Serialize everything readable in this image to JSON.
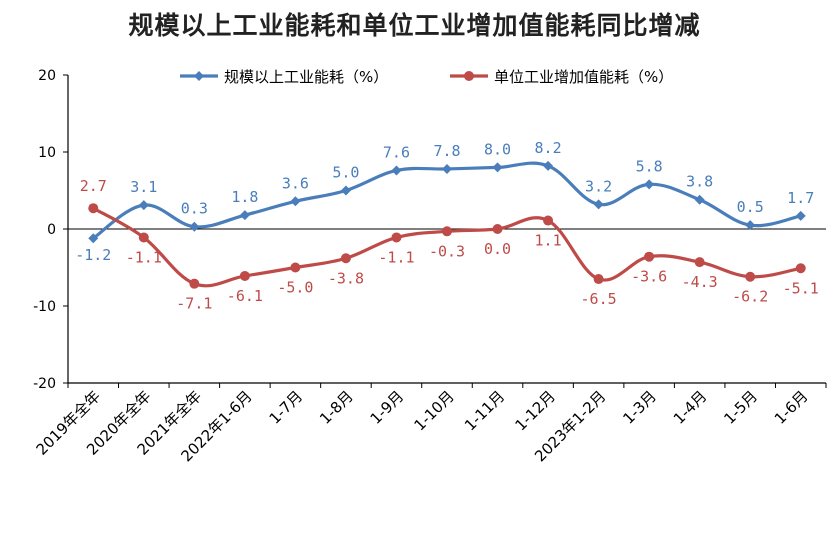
{
  "chart_data": {
    "type": "line",
    "title": "规模以上工业能耗和单位工业增加值能耗同比增减",
    "categories": [
      "2019年全年",
      "2020年全年",
      "2021年全年",
      "2022年1-6月",
      "1-7月",
      "1-8月",
      "1-9月",
      "1-10月",
      "1-11月",
      "1-12月",
      "2023年1-2月",
      "1-3月",
      "1-4月",
      "1-5月",
      "1-6月"
    ],
    "ylim": [
      -20,
      20
    ],
    "yticks": [
      -20,
      -10,
      0,
      10,
      20
    ],
    "grid": false,
    "legend_position": "top",
    "series": [
      {
        "name": "规模以上工业能耗（%）",
        "color": "#4a7ebb",
        "values": [
          -1.2,
          3.1,
          0.3,
          1.8,
          3.6,
          5.0,
          7.6,
          7.8,
          8.0,
          8.2,
          3.2,
          5.8,
          3.8,
          0.5,
          1.7
        ],
        "labels": [
          "-1.2",
          "3.1",
          "0.3",
          "1.8",
          "3.6",
          "5.0",
          "7.6",
          "7.8",
          "8.0",
          "8.2",
          "3.2",
          "5.8",
          "3.8",
          "0.5",
          "1.7"
        ]
      },
      {
        "name": "单位工业增加值能耗（%）",
        "color": "#be4b48",
        "values": [
          2.7,
          -1.1,
          -7.1,
          -6.1,
          -5.0,
          -3.8,
          -1.1,
          -0.3,
          0.0,
          1.1,
          -6.5,
          -3.6,
          -4.3,
          -6.2,
          -5.1
        ],
        "labels": [
          "2.7",
          "-1.1",
          "-7.1",
          "-6.1",
          "-5.0",
          "-3.8",
          "-1.1",
          "-0.3",
          "0.0",
          "1.1",
          "-6.5",
          "-3.6",
          "-4.3",
          "-6.2",
          "-5.1"
        ]
      }
    ]
  }
}
